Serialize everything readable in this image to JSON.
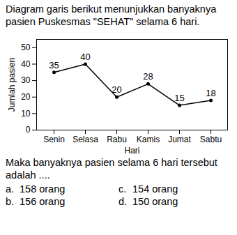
{
  "text": {
    "question": "Diagram garis berikut menunjukkan banyaknya pasien Puskesmas \"SEHAT\" selama 6 hari.",
    "prompt": "Maka banyaknya pasien selama 6 hari tersebut adalah ....",
    "options": [
      {
        "letter": "a.",
        "text": "158 orang"
      },
      {
        "letter": "b.",
        "text": "156 orang"
      },
      {
        "letter": "c.",
        "text": "154 orang"
      },
      {
        "letter": "d.",
        "text": "150 orang"
      }
    ]
  },
  "chart_data": {
    "type": "line",
    "categories": [
      "Senin",
      "Selasa",
      "Rabu",
      "Kamis",
      "Jumat",
      "Sabtu"
    ],
    "values": [
      35,
      40,
      20,
      28,
      15,
      18
    ],
    "x_label": "Hari",
    "y_label": "Jumlah pasien",
    "ylim": [
      0,
      55
    ],
    "yticks": [
      0,
      10,
      20,
      30,
      40,
      50
    ],
    "color": "#000000",
    "marker": "circle",
    "data_labels": true
  }
}
